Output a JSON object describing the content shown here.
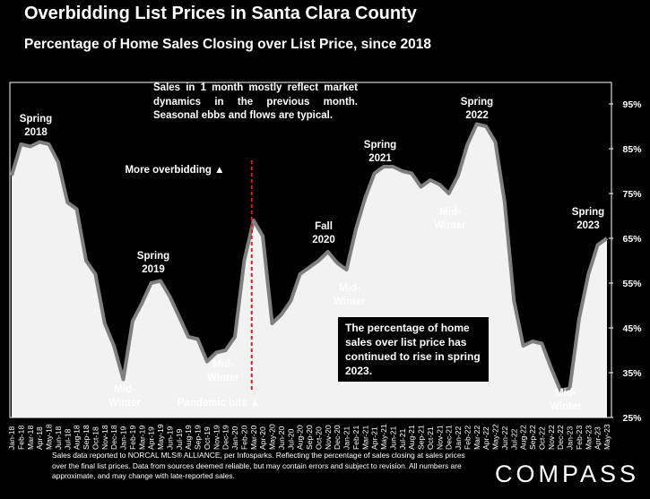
{
  "header": {
    "title": "Overbidding List Prices in Santa Clara County",
    "subtitle": "Percentage of Home Sales Closing over List Price, since 2018"
  },
  "notes": {
    "market_dynamics": "Sales in 1 month mostly reflect market dynamics in the previous month. Seasonal ebbs and flows are typical.",
    "spring_2023": "The percentage of home sales over list price has continued to rise in spring 2023."
  },
  "footer": {
    "disclaimer": "Sales data reported to NORCAL MLS® ALLIANCE, per Infosparks. Reflecting the percentage of sales closing at sales prices over the final list prices. Data from sources deemed reliable, but may contain errors and subject to revision. All numbers are approximate, and may change with late-reported sales."
  },
  "brand": {
    "logo_text": "COMPASS"
  },
  "colors": {
    "background": "#000000",
    "area_fill": "#f2f2f2",
    "line": "#7f7f7f",
    "marker_line": "#e0201b",
    "text": "#ffffff"
  },
  "chart_data": {
    "type": "area",
    "title": "Overbidding List Prices in Santa Clara County",
    "subtitle": "Percentage of Home Sales Closing over List Price, since 2018",
    "x": [
      "Jan-18",
      "Feb-18",
      "Mar-18",
      "Apr-18",
      "May-18",
      "Jun-18",
      "Jul-18",
      "Aug-18",
      "Sep-18",
      "Oct-18",
      "Nov-18",
      "Dec-18",
      "Jan-19",
      "Feb-19",
      "Mar-19",
      "Apr-19",
      "May-19",
      "Jun-19",
      "Jul-19",
      "Aug-19",
      "Sep-19",
      "Oct-19",
      "Nov-19",
      "Dec-19",
      "Jan-20",
      "Feb-20",
      "Mar-20",
      "Apr-20",
      "May-20",
      "Jun-20",
      "Jul-20",
      "Aug-20",
      "Sep-20",
      "Oct-20",
      "Nov-20",
      "Dec-20",
      "Jan-21",
      "Feb-21",
      "Mar-21",
      "Apr-21",
      "May-21",
      "Jun-21",
      "Jul-21",
      "Aug-21",
      "Sep-21",
      "Oct-21",
      "Nov-21",
      "Dec-21",
      "Jan-22",
      "Feb-22",
      "Mar-22",
      "Apr-22",
      "May-22",
      "Jun-22",
      "Jul-22",
      "Aug-22",
      "Sep-22",
      "Oct-22",
      "Nov-22",
      "Dec-22",
      "Jan-23",
      "Feb-23",
      "Mar-23",
      "Apr-23",
      "May-23"
    ],
    "series": [
      {
        "values": [
          79,
          86,
          85.5,
          86.5,
          86,
          82,
          73,
          71.5,
          60,
          57,
          46,
          41,
          33.5,
          46.5,
          50.5,
          55,
          55.5,
          52,
          47.5,
          43,
          42.5,
          37.5,
          39.5,
          40,
          43,
          60,
          69,
          65.5,
          46,
          48,
          51,
          57,
          58.5,
          60,
          62,
          59.5,
          58,
          67,
          74,
          79.5,
          81,
          81,
          80,
          79.5,
          76.5,
          78,
          77,
          75,
          79,
          86,
          90.5,
          90,
          86.5,
          73,
          51,
          41,
          42,
          41.5,
          36,
          31,
          31.5,
          47,
          57,
          63.5,
          65
        ]
      }
    ],
    "ylim": [
      25,
      95
    ],
    "yticks": [
      "25%",
      "35%",
      "45%",
      "55%",
      "65%",
      "75%",
      "85%",
      "95%"
    ],
    "ytick_values": [
      25,
      35,
      45,
      55,
      65,
      75,
      85,
      95
    ],
    "grid": false,
    "annotations": [
      {
        "text": "Spring\n2018",
        "x": "Mar-18"
      },
      {
        "text": "Spring\n2019",
        "x": "Apr-19"
      },
      {
        "text": "Mid-\nWinter",
        "x": "Jan-19"
      },
      {
        "text": "Mid-\nWinter",
        "x": "Nov-19"
      },
      {
        "text": "Fall\n2020",
        "x": "Oct-20"
      },
      {
        "text": "Mid-\nWinter",
        "x": "Jan-21"
      },
      {
        "text": "Spring\n2021",
        "x": "Apr-21"
      },
      {
        "text": "Mid-\nWinter",
        "x": "Dec-21"
      },
      {
        "text": "Spring\n2022",
        "x": "Mar-22"
      },
      {
        "text": "Mid-\nWinter",
        "x": "Dec-22"
      },
      {
        "text": "Spring\n2023",
        "x": "May-23"
      },
      {
        "text": "More overbidding ▲",
        "x": "Mar-20"
      },
      {
        "text": "Pandemic hits ▲",
        "x": "Mar-20"
      }
    ],
    "vline": {
      "x": "Mar-20"
    }
  }
}
